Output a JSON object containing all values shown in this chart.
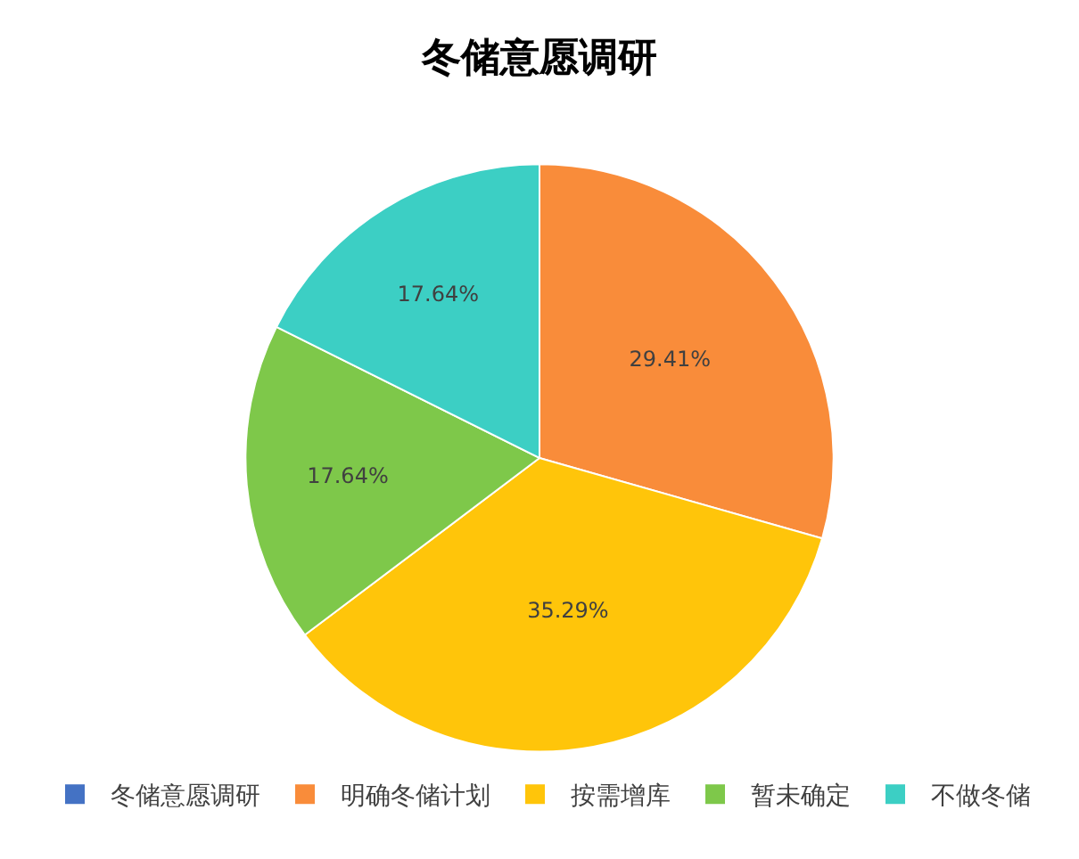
{
  "chart_data": {
    "type": "pie",
    "title": "冬储意愿调研",
    "categories": [
      "冬储意愿调研",
      "明确冬储计划",
      "按需增库",
      "暂未确定",
      "不做冬储"
    ],
    "values": [
      0,
      29.41,
      35.29,
      17.64,
      17.64
    ],
    "value_labels": [
      null,
      "29.41%",
      "35.29%",
      "17.64%",
      "17.64%"
    ],
    "colors": [
      "#4472c4",
      "#f98c3a",
      "#ffc50a",
      "#7ec84a",
      "#3ccfc4"
    ],
    "legend": "bottom"
  }
}
